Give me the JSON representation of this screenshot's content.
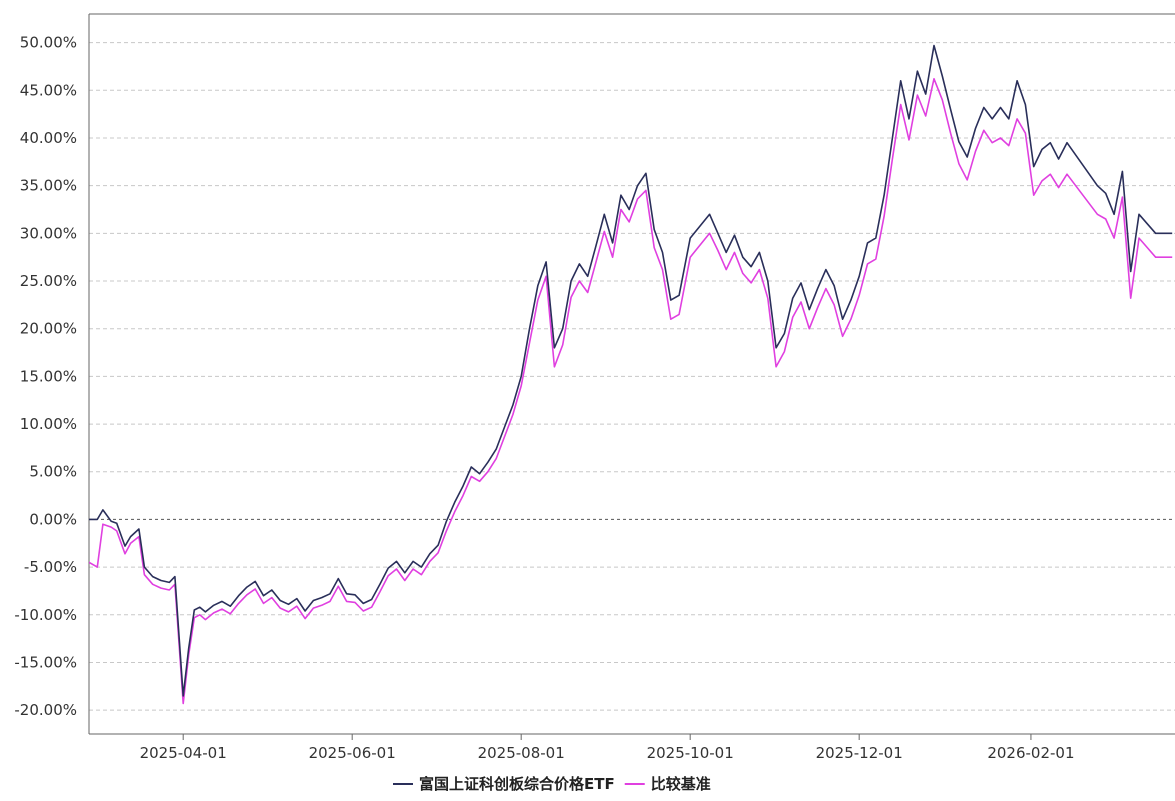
{
  "chart_data": {
    "type": "line",
    "title": "",
    "xlabel": "",
    "ylabel": "",
    "ylim": [
      -0.225,
      0.53
    ],
    "xlim": [
      "2025-02-26",
      "2026-03-25"
    ],
    "y_ticks": [
      -0.2,
      -0.15,
      -0.1,
      -0.05,
      0.0,
      0.05,
      0.1,
      0.15,
      0.2,
      0.25,
      0.3,
      0.35,
      0.4,
      0.45,
      0.5
    ],
    "y_tick_labels": [
      "-20.00%",
      "-15.00%",
      "-10.00%",
      "-5.00%",
      "0.00%",
      "5.00%",
      "10.00%",
      "15.00%",
      "20.00%",
      "25.00%",
      "30.00%",
      "35.00%",
      "40.00%",
      "45.00%",
      "50.00%"
    ],
    "x_ticks": [
      "2025-04-01",
      "2025-06-01",
      "2025-08-01",
      "2025-10-01",
      "2025-12-01",
      "2026-02-01"
    ],
    "x_tick_labels": [
      "2025-04-01",
      "2025-06-01",
      "2025-08-01",
      "2025-10-01",
      "2025-12-01",
      "2026-02-01"
    ],
    "grid": true,
    "zero_line": true,
    "legend_position": "bottom-center",
    "series": [
      {
        "name": "富国上证科创板综合价格ETF",
        "color": "#2a2f5a",
        "x": [
          "2025-02-26",
          "2025-03-01",
          "2025-03-03",
          "2025-03-06",
          "2025-03-08",
          "2025-03-11",
          "2025-03-13",
          "2025-03-16",
          "2025-03-18",
          "2025-03-21",
          "2025-03-24",
          "2025-03-27",
          "2025-03-29",
          "2025-04-01",
          "2025-04-03",
          "2025-04-05",
          "2025-04-07",
          "2025-04-09",
          "2025-04-12",
          "2025-04-15",
          "2025-04-18",
          "2025-04-21",
          "2025-04-24",
          "2025-04-27",
          "2025-04-30",
          "2025-05-03",
          "2025-05-06",
          "2025-05-09",
          "2025-05-12",
          "2025-05-15",
          "2025-05-18",
          "2025-05-21",
          "2025-05-24",
          "2025-05-27",
          "2025-05-30",
          "2025-06-02",
          "2025-06-05",
          "2025-06-08",
          "2025-06-11",
          "2025-06-14",
          "2025-06-17",
          "2025-06-20",
          "2025-06-23",
          "2025-06-26",
          "2025-06-29",
          "2025-07-02",
          "2025-07-05",
          "2025-07-08",
          "2025-07-11",
          "2025-07-14",
          "2025-07-17",
          "2025-07-20",
          "2025-07-23",
          "2025-07-26",
          "2025-07-29",
          "2025-08-01",
          "2025-08-04",
          "2025-08-07",
          "2025-08-10",
          "2025-08-13",
          "2025-08-16",
          "2025-08-19",
          "2025-08-22",
          "2025-08-25",
          "2025-08-28",
          "2025-08-31",
          "2025-09-03",
          "2025-09-06",
          "2025-09-09",
          "2025-09-12",
          "2025-09-15",
          "2025-09-18",
          "2025-09-21",
          "2025-09-24",
          "2025-09-27",
          "2025-10-01",
          "2025-10-08",
          "2025-10-11",
          "2025-10-14",
          "2025-10-17",
          "2025-10-20",
          "2025-10-23",
          "2025-10-26",
          "2025-10-29",
          "2025-11-01",
          "2025-11-04",
          "2025-11-07",
          "2025-11-10",
          "2025-11-13",
          "2025-11-16",
          "2025-11-19",
          "2025-11-22",
          "2025-11-25",
          "2025-11-28",
          "2025-12-01",
          "2025-12-04",
          "2025-12-07",
          "2025-12-10",
          "2025-12-13",
          "2025-12-16",
          "2025-12-19",
          "2025-12-22",
          "2025-12-25",
          "2025-12-28",
          "2025-12-31",
          "2026-01-03",
          "2026-01-06",
          "2026-01-09",
          "2026-01-12",
          "2026-01-15",
          "2026-01-18",
          "2026-01-21",
          "2026-01-24",
          "2026-01-27",
          "2026-01-30",
          "2026-02-02",
          "2026-02-05",
          "2026-02-08",
          "2026-02-11",
          "2026-02-14",
          "2026-02-25",
          "2026-02-28",
          "2026-03-03",
          "2026-03-06",
          "2026-03-09",
          "2026-03-12",
          "2026-03-15",
          "2026-03-18",
          "2026-03-21",
          "2026-03-24"
        ],
        "values": [
          0.0,
          0.0,
          0.01,
          -0.002,
          -0.004,
          -0.028,
          -0.018,
          -0.01,
          -0.05,
          -0.06,
          -0.064,
          -0.066,
          -0.06,
          -0.185,
          -0.135,
          -0.095,
          -0.092,
          -0.097,
          -0.09,
          -0.086,
          -0.091,
          -0.08,
          -0.071,
          -0.065,
          -0.08,
          -0.074,
          -0.085,
          -0.089,
          -0.083,
          -0.096,
          -0.085,
          -0.082,
          -0.078,
          -0.062,
          -0.078,
          -0.079,
          -0.088,
          -0.084,
          -0.068,
          -0.051,
          -0.044,
          -0.056,
          -0.044,
          -0.05,
          -0.036,
          -0.027,
          -0.002,
          0.018,
          0.035,
          0.055,
          0.048,
          0.06,
          0.074,
          0.097,
          0.12,
          0.15,
          0.2,
          0.245,
          0.27,
          0.18,
          0.2,
          0.25,
          0.268,
          0.255,
          0.287,
          0.32,
          0.29,
          0.34,
          0.325,
          0.35,
          0.363,
          0.304,
          0.28,
          0.23,
          0.235,
          0.295,
          0.32,
          0.3,
          0.28,
          0.298,
          0.275,
          0.265,
          0.28,
          0.25,
          0.18,
          0.195,
          0.232,
          0.248,
          0.22,
          0.242,
          0.262,
          0.245,
          0.21,
          0.23,
          0.255,
          0.29,
          0.295,
          0.34,
          0.4,
          0.46,
          0.42,
          0.47,
          0.446,
          0.497,
          0.465,
          0.43,
          0.396,
          0.38,
          0.41,
          0.432,
          0.42,
          0.432,
          0.42,
          0.46,
          0.435,
          0.37,
          0.388,
          0.395,
          0.378,
          0.395,
          0.35,
          0.342,
          0.32,
          0.365,
          0.26,
          0.32,
          0.31,
          0.3,
          0.3,
          0.3
        ]
      },
      {
        "name": "比较基准",
        "color": "#e040e0",
        "x": [
          "2025-02-26",
          "2025-03-01",
          "2025-03-03",
          "2025-03-06",
          "2025-03-08",
          "2025-03-11",
          "2025-03-13",
          "2025-03-16",
          "2025-03-18",
          "2025-03-21",
          "2025-03-24",
          "2025-03-27",
          "2025-03-29",
          "2025-04-01",
          "2025-04-03",
          "2025-04-05",
          "2025-04-07",
          "2025-04-09",
          "2025-04-12",
          "2025-04-15",
          "2025-04-18",
          "2025-04-21",
          "2025-04-24",
          "2025-04-27",
          "2025-04-30",
          "2025-05-03",
          "2025-05-06",
          "2025-05-09",
          "2025-05-12",
          "2025-05-15",
          "2025-05-18",
          "2025-05-21",
          "2025-05-24",
          "2025-05-27",
          "2025-05-30",
          "2025-06-02",
          "2025-06-05",
          "2025-06-08",
          "2025-06-11",
          "2025-06-14",
          "2025-06-17",
          "2025-06-20",
          "2025-06-23",
          "2025-06-26",
          "2025-06-29",
          "2025-07-02",
          "2025-07-05",
          "2025-07-08",
          "2025-07-11",
          "2025-07-14",
          "2025-07-17",
          "2025-07-20",
          "2025-07-23",
          "2025-07-26",
          "2025-07-29",
          "2025-08-01",
          "2025-08-04",
          "2025-08-07",
          "2025-08-10",
          "2025-08-13",
          "2025-08-16",
          "2025-08-19",
          "2025-08-22",
          "2025-08-25",
          "2025-08-28",
          "2025-08-31",
          "2025-09-03",
          "2025-09-06",
          "2025-09-09",
          "2025-09-12",
          "2025-09-15",
          "2025-09-18",
          "2025-09-21",
          "2025-09-24",
          "2025-09-27",
          "2025-10-01",
          "2025-10-08",
          "2025-10-11",
          "2025-10-14",
          "2025-10-17",
          "2025-10-20",
          "2025-10-23",
          "2025-10-26",
          "2025-10-29",
          "2025-11-01",
          "2025-11-04",
          "2025-11-07",
          "2025-11-10",
          "2025-11-13",
          "2025-11-16",
          "2025-11-19",
          "2025-11-22",
          "2025-11-25",
          "2025-11-28",
          "2025-12-01",
          "2025-12-04",
          "2025-12-07",
          "2025-12-10",
          "2025-12-13",
          "2025-12-16",
          "2025-12-19",
          "2025-12-22",
          "2025-12-25",
          "2025-12-28",
          "2025-12-31",
          "2026-01-03",
          "2026-01-06",
          "2026-01-09",
          "2026-01-12",
          "2026-01-15",
          "2026-01-18",
          "2026-01-21",
          "2026-01-24",
          "2026-01-27",
          "2026-01-30",
          "2026-02-02",
          "2026-02-05",
          "2026-02-08",
          "2026-02-11",
          "2026-02-14",
          "2026-02-25",
          "2026-02-28",
          "2026-03-03",
          "2026-03-06",
          "2026-03-09",
          "2026-03-12",
          "2026-03-15",
          "2026-03-18",
          "2026-03-21",
          "2026-03-24"
        ],
        "values": [
          -0.045,
          -0.05,
          -0.005,
          -0.008,
          -0.012,
          -0.036,
          -0.025,
          -0.018,
          -0.058,
          -0.068,
          -0.072,
          -0.074,
          -0.068,
          -0.193,
          -0.142,
          -0.103,
          -0.1,
          -0.105,
          -0.098,
          -0.094,
          -0.099,
          -0.088,
          -0.079,
          -0.073,
          -0.088,
          -0.082,
          -0.093,
          -0.097,
          -0.091,
          -0.104,
          -0.093,
          -0.09,
          -0.086,
          -0.07,
          -0.086,
          -0.087,
          -0.096,
          -0.092,
          -0.076,
          -0.059,
          -0.052,
          -0.064,
          -0.052,
          -0.058,
          -0.044,
          -0.035,
          -0.012,
          0.008,
          0.025,
          0.045,
          0.04,
          0.05,
          0.064,
          0.087,
          0.11,
          0.14,
          0.185,
          0.23,
          0.255,
          0.16,
          0.183,
          0.233,
          0.25,
          0.238,
          0.27,
          0.302,
          0.275,
          0.325,
          0.312,
          0.336,
          0.345,
          0.285,
          0.262,
          0.21,
          0.215,
          0.275,
          0.3,
          0.282,
          0.262,
          0.28,
          0.258,
          0.248,
          0.262,
          0.232,
          0.16,
          0.176,
          0.212,
          0.228,
          0.2,
          0.222,
          0.242,
          0.225,
          0.192,
          0.21,
          0.235,
          0.268,
          0.273,
          0.318,
          0.378,
          0.435,
          0.398,
          0.445,
          0.423,
          0.462,
          0.44,
          0.405,
          0.373,
          0.356,
          0.386,
          0.408,
          0.395,
          0.4,
          0.392,
          0.42,
          0.405,
          0.34,
          0.355,
          0.362,
          0.348,
          0.362,
          0.32,
          0.315,
          0.295,
          0.338,
          0.232,
          0.295,
          0.285,
          0.275,
          0.275,
          0.275
        ]
      }
    ]
  },
  "legend": {
    "items": [
      {
        "label": "富国上证科创板综合价格ETF",
        "color": "#2a2f5a"
      },
      {
        "label": "比较基准",
        "color": "#e040e0"
      }
    ]
  }
}
